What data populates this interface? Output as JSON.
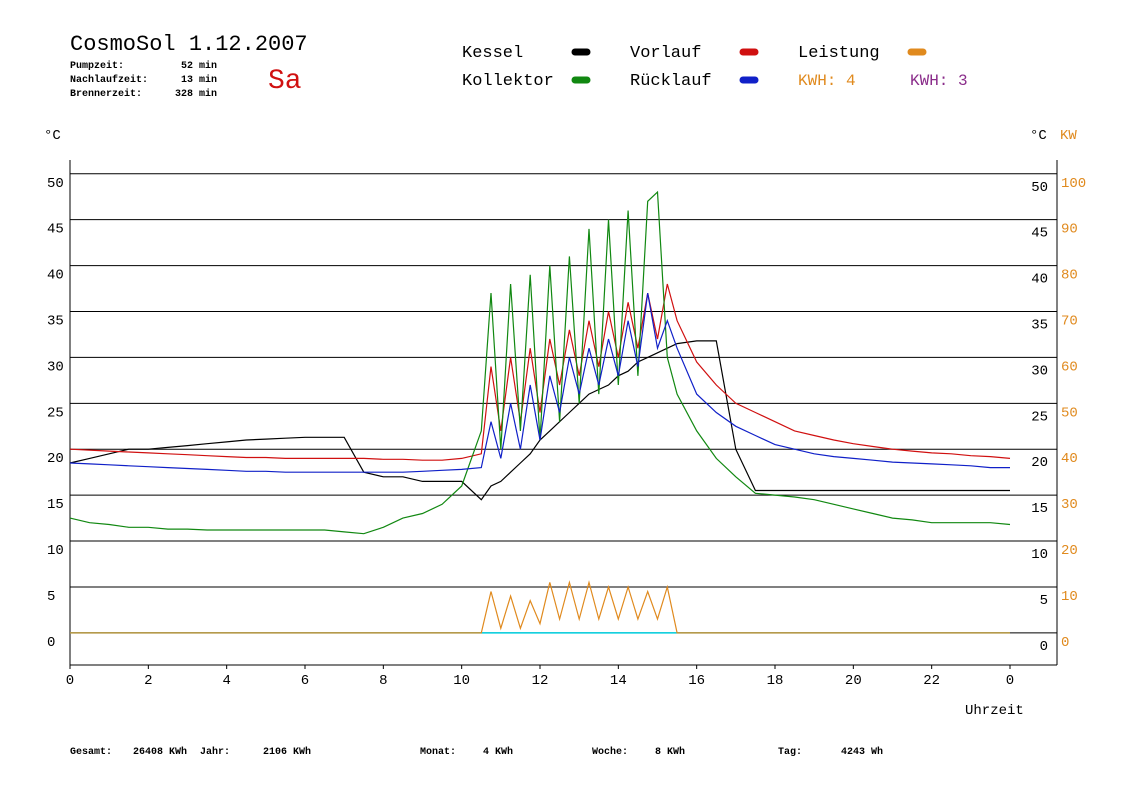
{
  "header": {
    "title": "CosmoSol 1.12.2007",
    "day": "Sa",
    "stats": [
      [
        "Pumpzeit:",
        "52 min"
      ],
      [
        "Nachlaufzeit:",
        "13 min"
      ],
      [
        "Brennerzeit:",
        "328 min"
      ]
    ]
  },
  "footer": [
    [
      "Gesamt:",
      "26408 KWh"
    ],
    [
      "Jahr:",
      "2106 KWh"
    ],
    [
      "Monat:",
      "4 KWh"
    ],
    [
      "Woche:",
      "8 KWh"
    ],
    [
      "Tag:",
      "4243 Wh"
    ]
  ],
  "chart_data": {
    "type": "line",
    "y_label": "°C",
    "y2_label_c": "°C",
    "y2_label": "KW",
    "x_label": "Uhrzeit",
    "kwh_labels": [
      {
        "text": "KWH: 4",
        "color": "#e08a1e"
      },
      {
        "text": "KWH: 3",
        "color": "#8a2c8a"
      }
    ],
    "x": [
      0,
      0.5,
      1,
      1.5,
      2,
      2.5,
      3,
      3.5,
      4,
      4.5,
      5,
      5.5,
      6,
      6.5,
      7,
      7.5,
      8,
      8.5,
      9,
      9.5,
      10,
      10.5,
      10.75,
      11,
      11.25,
      11.5,
      11.75,
      12,
      12.25,
      12.5,
      12.75,
      13,
      13.25,
      13.5,
      13.75,
      14,
      14.25,
      14.5,
      14.75,
      15,
      15.25,
      15.5,
      16,
      16.5,
      17,
      17.5,
      18,
      18.5,
      19,
      19.5,
      20,
      20.5,
      21,
      21.5,
      22,
      22.5,
      23,
      23.5,
      24
    ],
    "xlim": [
      0,
      25.2
    ],
    "xticks": [
      0,
      2,
      4,
      6,
      8,
      10,
      12,
      14,
      16,
      18,
      20,
      22,
      {
        "value": 24,
        "label": "0"
      }
    ],
    "ylim": [
      -3.5,
      51.5
    ],
    "yticks": [
      0,
      5,
      10,
      15,
      20,
      25,
      30,
      35,
      40,
      45,
      50
    ],
    "y2lim": [
      -7,
      103
    ],
    "y2ticks": [
      0,
      10,
      20,
      30,
      40,
      50,
      60,
      70,
      80,
      90,
      100
    ],
    "grid": true,
    "series": [
      {
        "name": "Kessel",
        "color": "#000000",
        "values": [
          18.5,
          19,
          19.5,
          20,
          20,
          20.2,
          20.4,
          20.6,
          20.8,
          21,
          21.1,
          21.2,
          21.3,
          21.3,
          21.3,
          17.5,
          17,
          17,
          16.5,
          16.5,
          16.5,
          14.5,
          16,
          16.5,
          17.5,
          18.5,
          19.5,
          21,
          22,
          23,
          24,
          25,
          26,
          26.5,
          27,
          28,
          28.5,
          29.5,
          30,
          30.5,
          31,
          31.5,
          31.8,
          31.8,
          20,
          15.5,
          15.5,
          15.5,
          15.5,
          15.5,
          15.5,
          15.5,
          15.5,
          15.5,
          15.5,
          15.5,
          15.5,
          15.5,
          15.5
        ]
      },
      {
        "name": "Vorlauf",
        "color": "#d01010",
        "values": [
          20,
          19.9,
          19.8,
          19.7,
          19.6,
          19.5,
          19.4,
          19.3,
          19.2,
          19.1,
          19.1,
          19,
          19,
          19,
          19,
          19,
          18.9,
          18.9,
          18.8,
          18.8,
          19,
          19.5,
          29,
          22,
          30,
          23,
          31,
          24,
          32,
          27,
          33,
          28,
          34,
          29,
          35,
          30,
          36,
          31,
          37,
          32,
          38,
          34,
          29.5,
          27,
          25,
          24,
          23,
          22,
          21.5,
          21,
          20.6,
          20.3,
          20,
          19.8,
          19.6,
          19.5,
          19.3,
          19.2,
          19
        ]
      },
      {
        "name": "Leistung",
        "color": "#e08a1e",
        "axis": "y2",
        "values": [
          0,
          0,
          0,
          0,
          0,
          0,
          0,
          0,
          0,
          0,
          0,
          0,
          0,
          0,
          0,
          0,
          0,
          0,
          0,
          0,
          0,
          0,
          9,
          1,
          8,
          1,
          7,
          2,
          11,
          3,
          11,
          3,
          11,
          3,
          10,
          3,
          10,
          3,
          9,
          3,
          10,
          0,
          0,
          0,
          0,
          0,
          0,
          0,
          0,
          0,
          0,
          0,
          0,
          0,
          0,
          0,
          0,
          0,
          0
        ]
      },
      {
        "name": "Kollektor",
        "color": "#118811",
        "values": [
          12.5,
          12,
          11.8,
          11.5,
          11.5,
          11.3,
          11.3,
          11.2,
          11.2,
          11.2,
          11.2,
          11.2,
          11.2,
          11.2,
          11,
          10.8,
          11.5,
          12.5,
          13,
          14,
          16,
          22,
          37,
          20,
          38,
          22,
          39,
          21,
          40,
          23,
          41,
          25,
          44,
          26,
          45,
          27,
          46,
          28,
          47,
          48,
          30,
          26,
          22,
          19,
          17,
          15.2,
          15,
          14.8,
          14.5,
          14,
          13.5,
          13,
          12.5,
          12.3,
          12,
          12,
          12,
          12,
          11.8
        ]
      },
      {
        "name": "Rücklauf",
        "color": "#1020c8",
        "values": [
          18.5,
          18.4,
          18.3,
          18.2,
          18.1,
          18,
          17.9,
          17.8,
          17.7,
          17.6,
          17.6,
          17.5,
          17.5,
          17.5,
          17.5,
          17.5,
          17.5,
          17.5,
          17.6,
          17.7,
          17.8,
          18,
          23,
          19,
          25,
          20,
          27,
          21,
          28,
          24,
          30,
          26,
          31,
          27,
          32,
          28,
          34,
          29,
          37,
          31,
          34,
          31,
          26,
          24,
          22.5,
          21.5,
          20.5,
          20,
          19.5,
          19.2,
          19,
          18.8,
          18.6,
          18.5,
          18.4,
          18.3,
          18.2,
          18,
          18
        ]
      }
    ]
  }
}
